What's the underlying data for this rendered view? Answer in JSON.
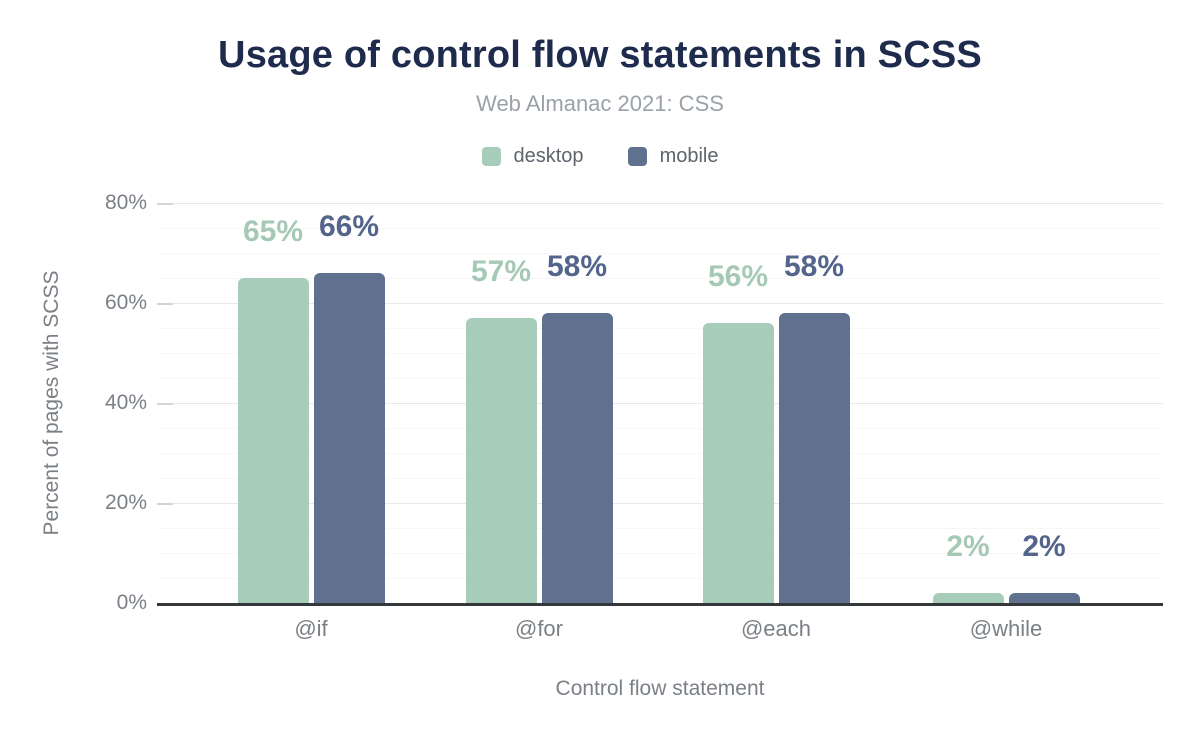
{
  "title": "Usage of control flow statements in SCSS",
  "subtitle": "Web Almanac 2021: CSS",
  "legend": [
    {
      "label": "desktop",
      "color": "#a8ccba"
    },
    {
      "label": "mobile",
      "color": "#5f718e"
    }
  ],
  "colors": {
    "title_text": "#1f2b4d",
    "subtitle_text": "#9aa1a8",
    "legend_text": "#5d646d",
    "axis_text": "#7b8086",
    "axis_line": "#34383b",
    "gridline_major": "#e9e9e9",
    "gridline_minor": "#f7f7f7",
    "tick_mark": "#d2d5d8",
    "desktop": "#a8ccba",
    "mobile": "#5f718e",
    "desktop_label": "#a5c9b6",
    "mobile_label": "#53658c"
  },
  "chart_data": {
    "type": "bar",
    "title": "Usage of control flow statements in SCSS",
    "subtitle": "Web Almanac 2021: CSS",
    "categories": [
      "@if",
      "@for",
      "@each",
      "@while"
    ],
    "series": [
      {
        "name": "desktop",
        "color": "#a8ccba",
        "label_color": "#a5c9b6",
        "values": [
          65,
          57,
          56,
          2
        ]
      },
      {
        "name": "mobile",
        "color": "#5f718e",
        "label_color": "#53658c",
        "values": [
          66,
          58,
          58,
          2
        ]
      }
    ],
    "value_labels": [
      [
        "65%",
        "57%",
        "56%",
        "2%"
      ],
      [
        "66%",
        "58%",
        "58%",
        "2%"
      ]
    ],
    "xlabel": "Control flow statement",
    "ylabel": "Percent of pages with SCSS",
    "ylim": [
      0,
      80
    ],
    "yticks": [
      {
        "value": 0,
        "label": "0%"
      },
      {
        "value": 20,
        "label": "20%"
      },
      {
        "value": 40,
        "label": "40%"
      },
      {
        "value": 60,
        "label": "60%"
      },
      {
        "value": 80,
        "label": "80%"
      }
    ],
    "minor_grid_step": 5,
    "grid": "horizontal",
    "legend_position": "top",
    "value_suffix": "%"
  }
}
